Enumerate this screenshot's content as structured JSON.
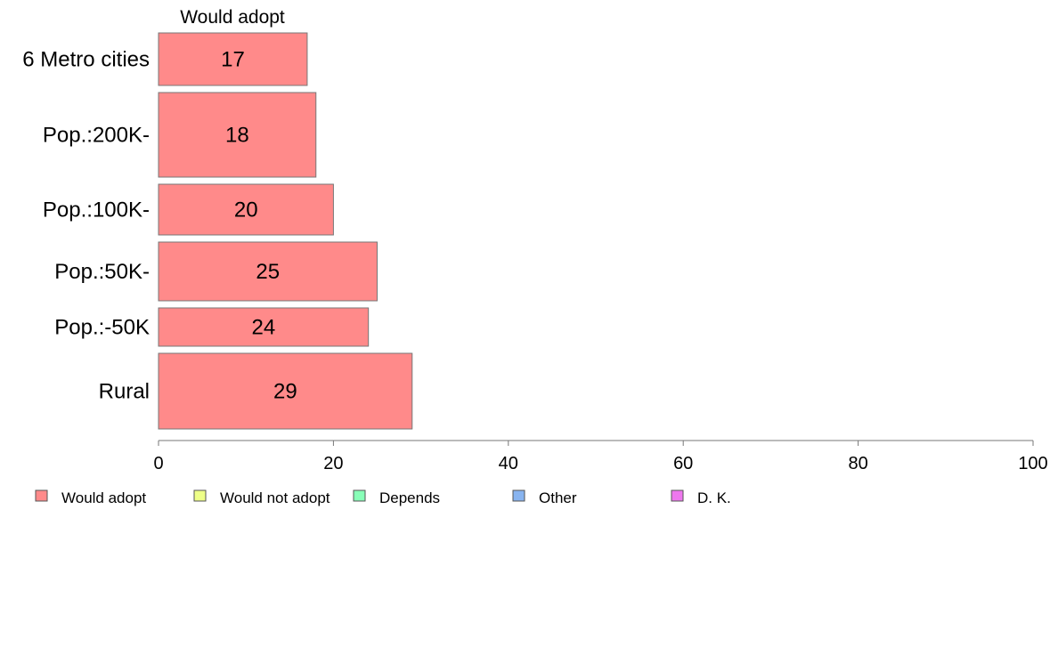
{
  "chart_data": {
    "type": "bar",
    "orientation": "horizontal",
    "title": "Would adopt",
    "categories": [
      "6 Metro cities",
      "Pop.:200K-",
      "Pop.:100K-",
      "Pop.:50K-",
      "Pop.:-50K",
      "Rural"
    ],
    "series": [
      {
        "name": "Would adopt",
        "values": [
          17,
          18,
          20,
          25,
          24,
          29
        ],
        "color": "#ff8a8a"
      }
    ],
    "xlim": [
      0,
      100
    ],
    "xticks": [
      0,
      20,
      40,
      60,
      80,
      100
    ],
    "grid": false,
    "legend_placement": "bottom",
    "legend": [
      {
        "label": "Would adopt",
        "color": "#ff8a8a"
      },
      {
        "label": "Would not adopt",
        "color": "#eeff88"
      },
      {
        "label": "Depends",
        "color": "#88ffb8"
      },
      {
        "label": "Other",
        "color": "#88b4f0"
      },
      {
        "label": "D. K.",
        "color": "#ee77ee"
      }
    ]
  }
}
